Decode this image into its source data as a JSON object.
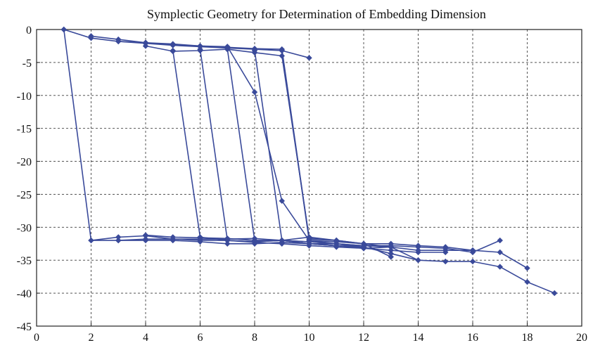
{
  "chart_data": {
    "type": "line",
    "title": "Symplectic Geometry for Determination of Embedding Dimension",
    "xlabel": "",
    "ylabel": "",
    "xlim": [
      0,
      20
    ],
    "ylim": [
      -45,
      0
    ],
    "xticks": [
      0,
      2,
      4,
      6,
      8,
      10,
      12,
      14,
      16,
      18,
      20
    ],
    "yticks": [
      0,
      -5,
      -10,
      -15,
      -20,
      -25,
      -30,
      -35,
      -40,
      -45
    ],
    "grid": true,
    "line_color": "#3a4a9a",
    "series": [
      {
        "x": [
          1,
          2,
          3,
          4,
          5,
          6,
          7,
          8,
          9,
          10
        ],
        "y": [
          0,
          -1.3,
          -1.8,
          -2.1,
          -2.4,
          -2.6,
          -2.8,
          -3.0,
          -3.2,
          -4.3
        ]
      },
      {
        "x": [
          1,
          2,
          3,
          4,
          5,
          6,
          7,
          8,
          9,
          10
        ],
        "y": [
          0,
          -32.0,
          -32.0,
          -31.8,
          -31.8,
          -31.8,
          -31.8,
          -31.7,
          -32.0,
          -31.5
        ]
      },
      {
        "x": [
          2,
          3,
          4,
          5,
          6,
          7,
          8,
          9,
          10,
          11
        ],
        "y": [
          -1.0,
          -1.5,
          -2.0,
          -2.3,
          -2.5,
          -2.7,
          -2.9,
          -3.0,
          -31.8,
          -32.0
        ]
      },
      {
        "x": [
          2,
          3,
          4,
          5,
          6,
          7,
          8,
          9,
          10,
          11
        ],
        "y": [
          -32.0,
          -31.5,
          -31.3,
          -31.8,
          -32.0,
          -32.0,
          -32.2,
          -32.0,
          -32.5,
          -32.8
        ]
      },
      {
        "x": [
          3,
          4,
          5,
          6,
          7,
          8,
          9,
          10,
          11,
          12
        ],
        "y": [
          -1.8,
          -2.0,
          -2.2,
          -2.5,
          -2.6,
          -9.5,
          -26.0,
          -32.0,
          -32.5,
          -33.0
        ]
      },
      {
        "x": [
          3,
          4,
          5,
          6,
          7,
          8,
          9,
          10,
          11,
          12
        ],
        "y": [
          -32.0,
          -32.0,
          -32.0,
          -32.2,
          -32.5,
          -32.5,
          -32.3,
          -32.5,
          -32.8,
          -33.2
        ]
      },
      {
        "x": [
          4,
          5,
          6,
          7,
          8,
          9,
          10,
          11,
          12,
          13
        ],
        "y": [
          -2.5,
          -3.3,
          -3.2,
          -3.0,
          -3.5,
          -4.0,
          -31.6,
          -32.0,
          -32.5,
          -34.5
        ]
      },
      {
        "x": [
          4,
          5,
          6,
          7,
          8,
          9,
          10,
          11,
          12,
          13
        ],
        "y": [
          -31.2,
          -31.5,
          -31.6,
          -31.7,
          -32.0,
          -32.0,
          -32.2,
          -32.5,
          -33.2,
          -33.0
        ]
      },
      {
        "x": [
          5,
          6,
          7,
          8,
          9,
          10,
          11,
          12,
          13,
          14
        ],
        "y": [
          -3.2,
          -31.5,
          -32.0,
          -32.2,
          -32.0,
          -32.5,
          -32.8,
          -33.0,
          -34.0,
          -35.0
        ]
      },
      {
        "x": [
          6,
          7,
          8,
          9,
          10,
          11,
          12,
          13,
          14,
          15
        ],
        "y": [
          -3.0,
          -32.0,
          -32.3,
          -32.5,
          -32.8,
          -33.0,
          -33.2,
          -33.5,
          -33.8,
          -33.8
        ]
      },
      {
        "x": [
          7,
          8,
          9,
          10,
          11,
          12,
          13,
          14,
          15,
          16
        ],
        "y": [
          -3.0,
          -32.0,
          -32.0,
          -32.2,
          -32.5,
          -32.8,
          -33.0,
          -33.5,
          -33.5,
          -33.5
        ]
      },
      {
        "x": [
          8,
          9,
          10,
          11,
          12,
          13,
          14,
          15,
          16,
          17
        ],
        "y": [
          -3.2,
          -32.0,
          -32.5,
          -32.5,
          -32.8,
          -32.8,
          -33.0,
          -33.2,
          -33.8,
          -32.0
        ]
      },
      {
        "x": [
          9,
          10,
          11,
          12,
          13,
          14,
          15,
          16,
          17,
          18
        ],
        "y": [
          -3.2,
          -32.0,
          -32.2,
          -32.5,
          -32.5,
          -32.8,
          -33.0,
          -33.5,
          -33.8,
          -36.2
        ]
      },
      {
        "x": [
          10,
          11,
          12,
          13,
          14,
          15,
          16,
          17,
          18,
          19
        ],
        "y": [
          -31.5,
          -32.0,
          -32.5,
          -33.0,
          -35.0,
          -35.2,
          -35.2,
          -36.0,
          -38.3,
          -40.0
        ]
      }
    ]
  }
}
